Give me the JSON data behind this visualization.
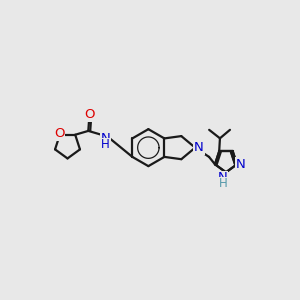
{
  "background_color": "#e8e8e8",
  "bond_color": "#1a1a1a",
  "atom_colors": {
    "O": "#dd0000",
    "N": "#0000cc",
    "C": "#1a1a1a"
  },
  "line_width": 1.6,
  "font_size": 8.5,
  "figsize": [
    3.0,
    3.0
  ],
  "dpi": 100
}
